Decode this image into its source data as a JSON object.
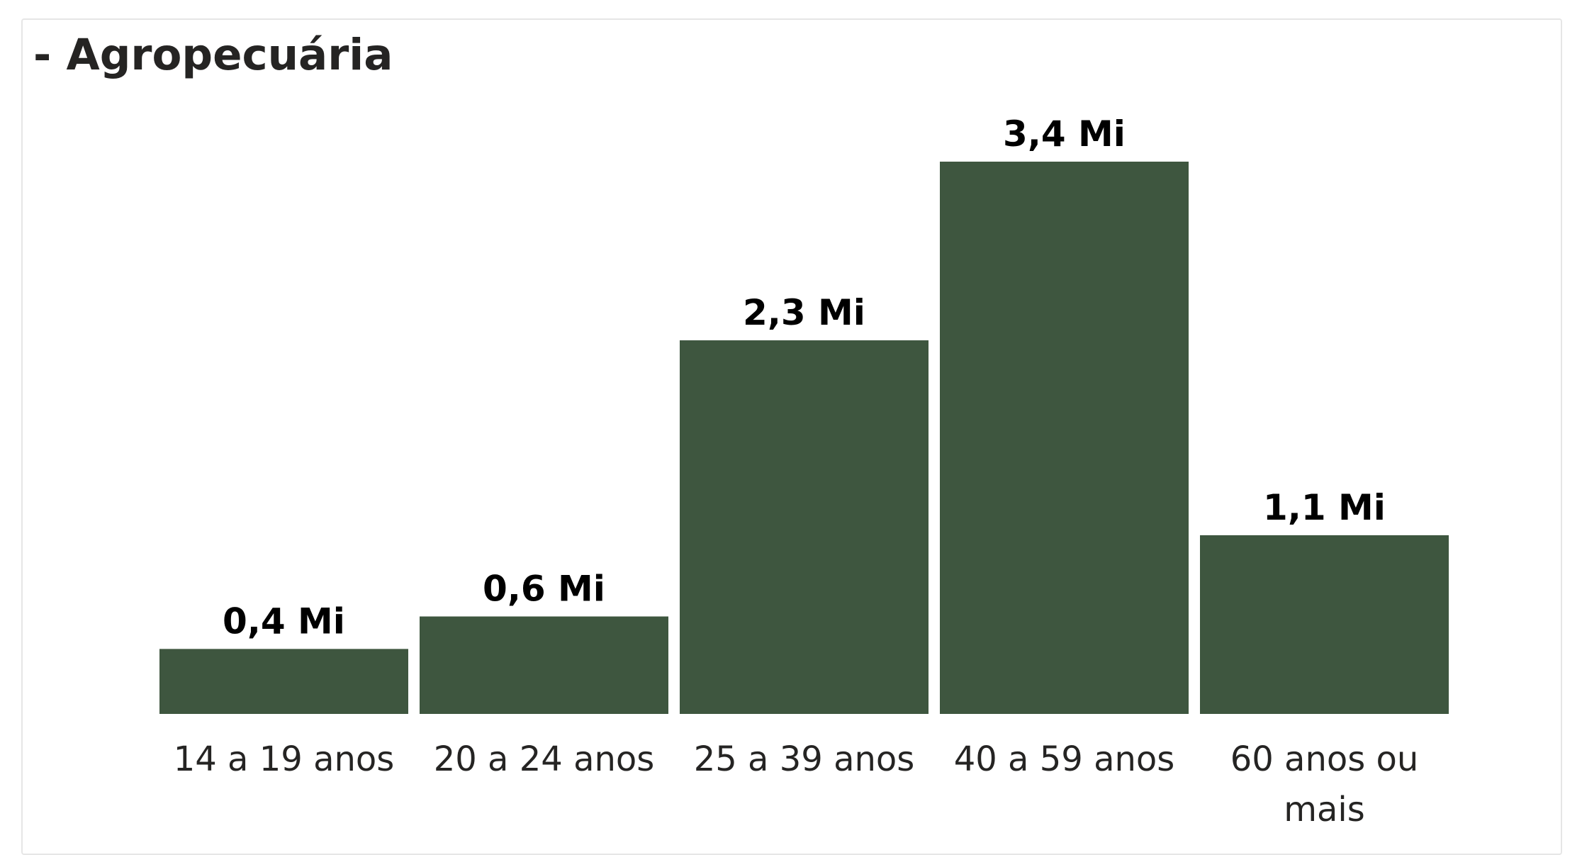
{
  "panel": {
    "title": "- Agropecuária"
  },
  "colors": {
    "bar": "#3e563f",
    "text": "#252423",
    "border": "#e6e6e6"
  },
  "chart_data": {
    "type": "bar",
    "categories": [
      [
        "14 a 19 anos"
      ],
      [
        "20 a 24 anos"
      ],
      [
        "25 a 39 anos"
      ],
      [
        "40 a 59 anos"
      ],
      [
        "60 anos ou",
        "mais"
      ]
    ],
    "values": [
      0.4,
      0.6,
      2.3,
      3.4,
      1.1
    ],
    "data_labels": [
      "0,4 Mi",
      "0,6 Mi",
      "2,3 Mi",
      "3,4 Mi",
      "1,1 Mi"
    ],
    "unit": "Mi",
    "title": "- Agropecuária",
    "xlabel": "",
    "ylabel": "",
    "ylim": [
      0,
      3.4
    ],
    "grid": false,
    "legend": "none"
  }
}
